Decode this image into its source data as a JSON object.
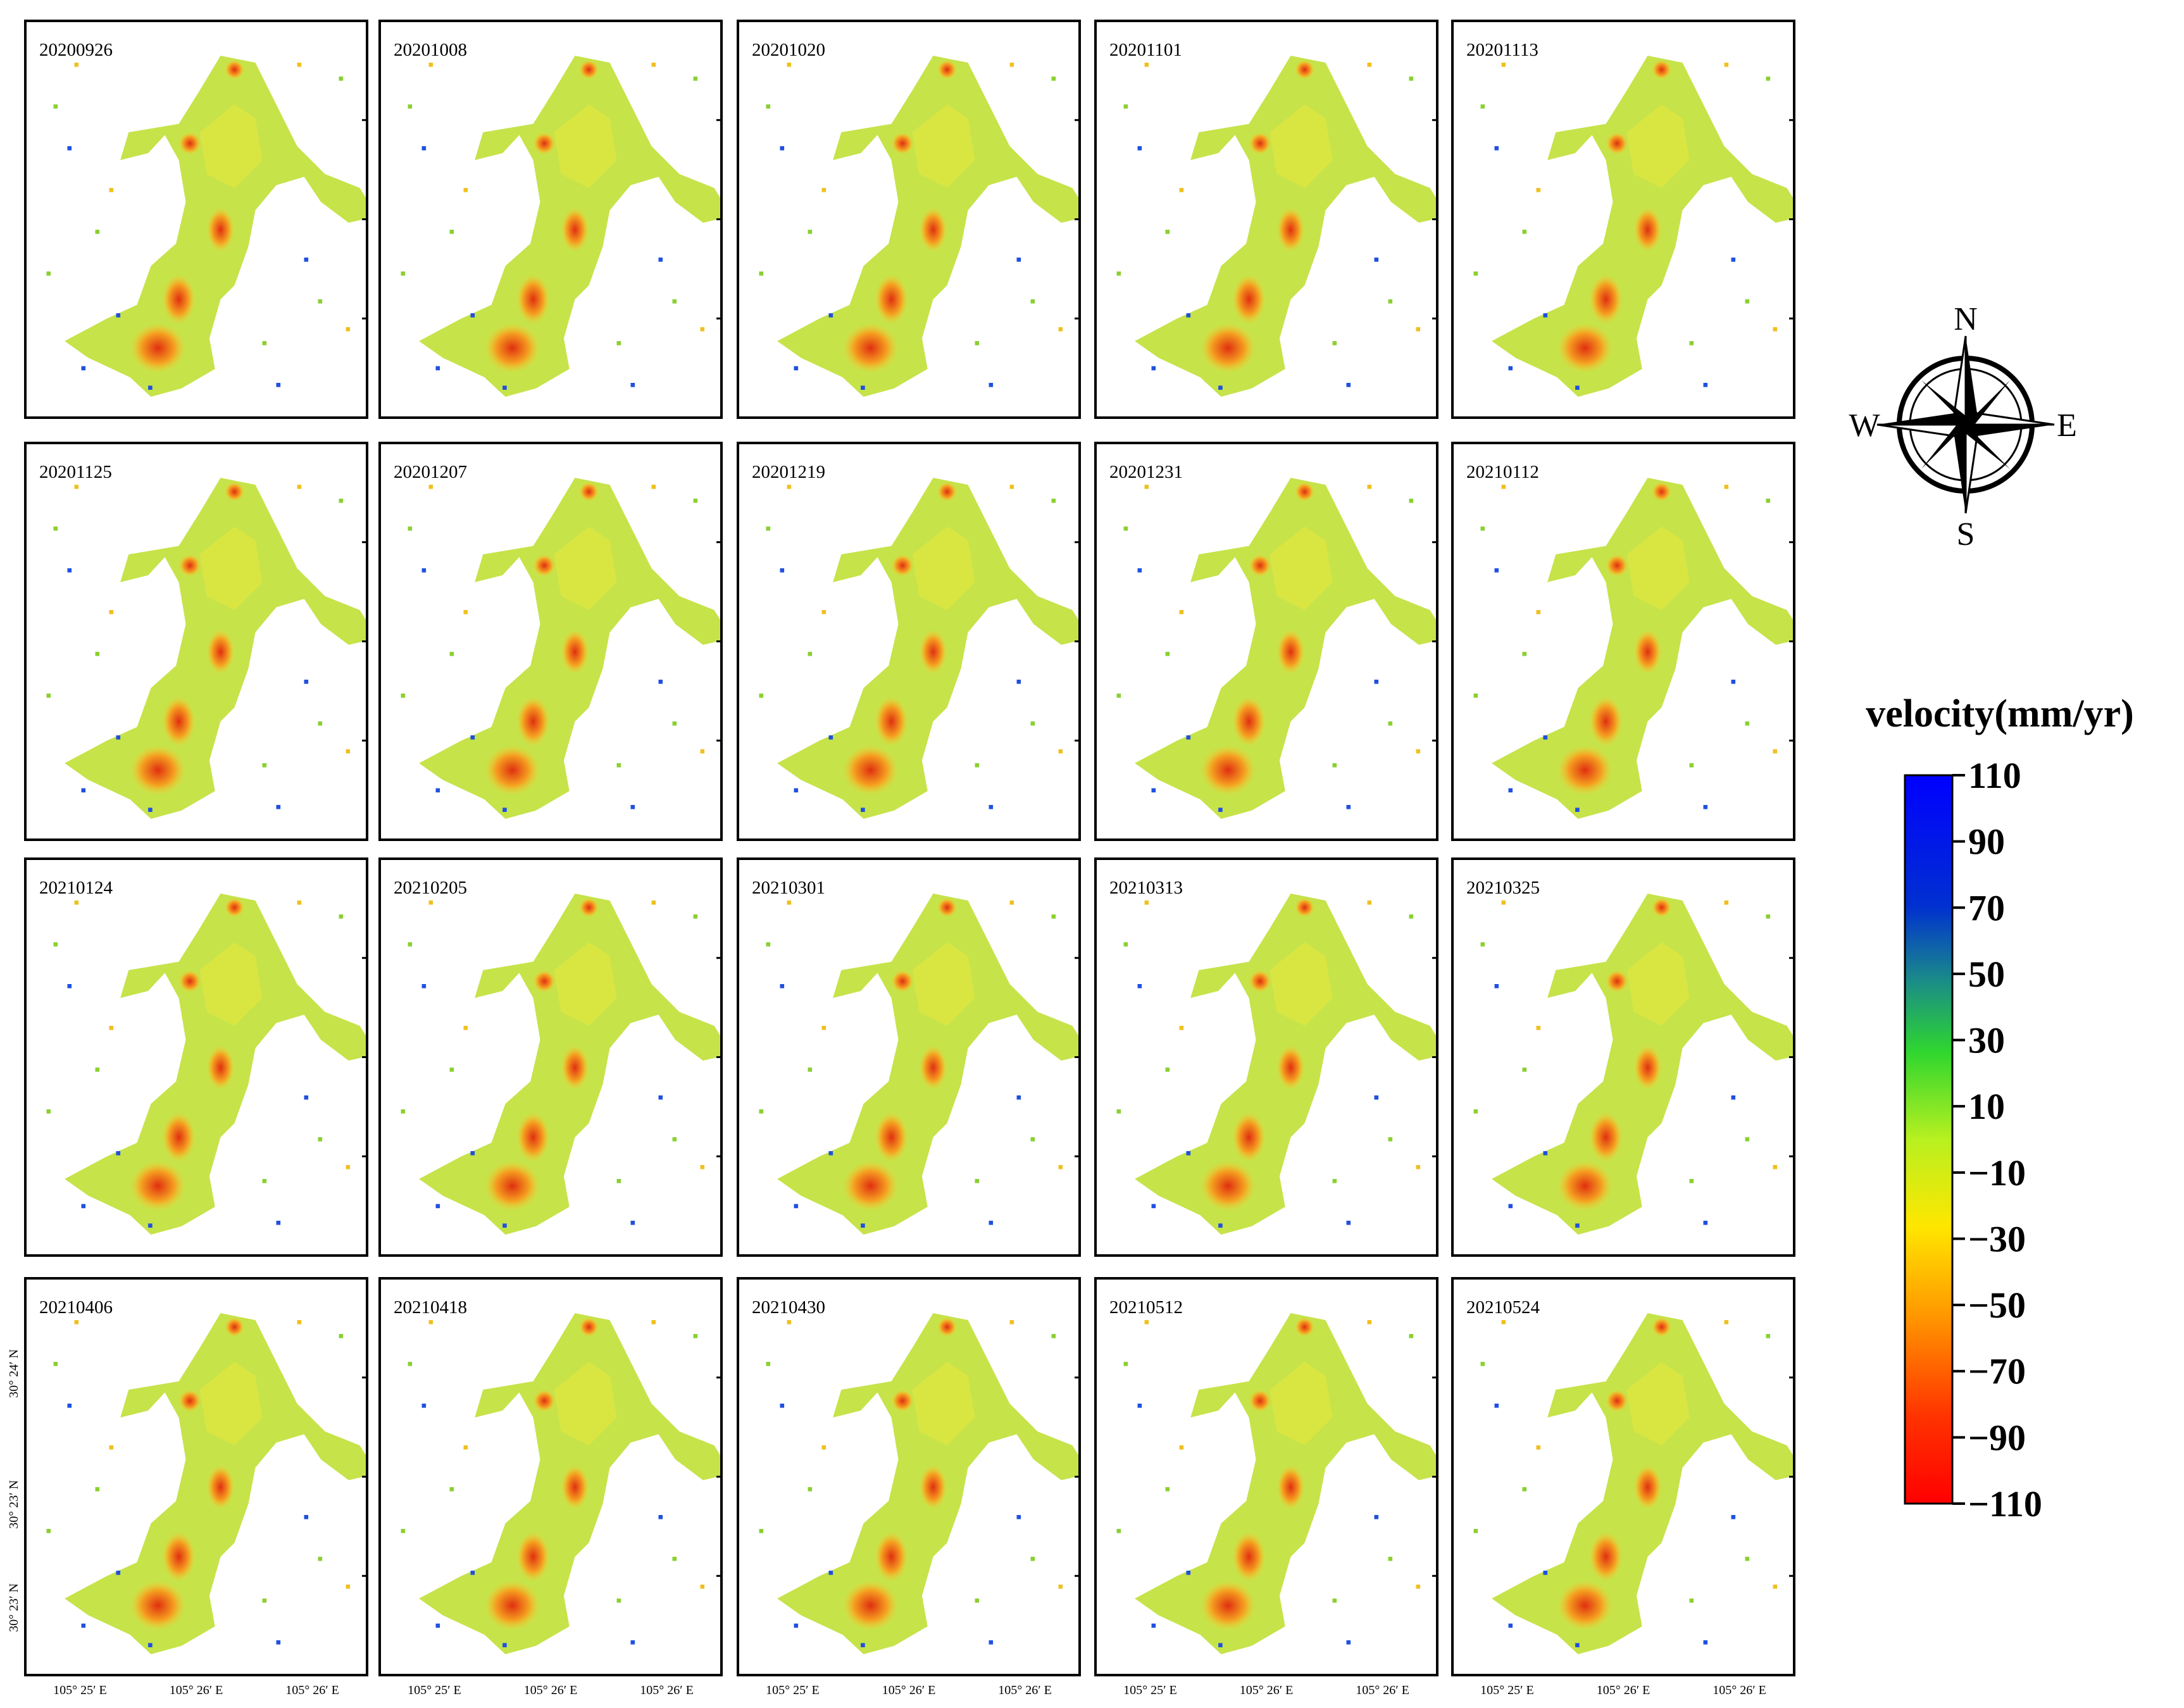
{
  "panels": [
    {
      "label": "20200926"
    },
    {
      "label": "20201008"
    },
    {
      "label": "20201020"
    },
    {
      "label": "20201101"
    },
    {
      "label": "20201113"
    },
    {
      "label": "20201125"
    },
    {
      "label": "20201207"
    },
    {
      "label": "20201219"
    },
    {
      "label": "20201231"
    },
    {
      "label": "20210112"
    },
    {
      "label": "20210124"
    },
    {
      "label": "20210205"
    },
    {
      "label": "20210301"
    },
    {
      "label": "20210313"
    },
    {
      "label": "20210325"
    },
    {
      "label": "20210406"
    },
    {
      "label": "20210418"
    },
    {
      "label": "20210430"
    },
    {
      "label": "20210512"
    },
    {
      "label": "20210524"
    }
  ],
  "lon_labels": [
    "105° 25′ E",
    "105° 26′ E",
    "105° 26′ E"
  ],
  "lat_labels": [
    "30° 24′ N",
    "30° 23′ N",
    "30° 23′ N"
  ],
  "legend": {
    "title": "velocity(mm/yr)",
    "ticks": [
      "110",
      "90",
      "70",
      "50",
      "30",
      "10",
      "−10",
      "−30",
      "−50",
      "−70",
      "−90",
      "−110"
    ]
  },
  "compass": {
    "north": "N",
    "east": "E",
    "south": "S",
    "west": "W"
  }
}
